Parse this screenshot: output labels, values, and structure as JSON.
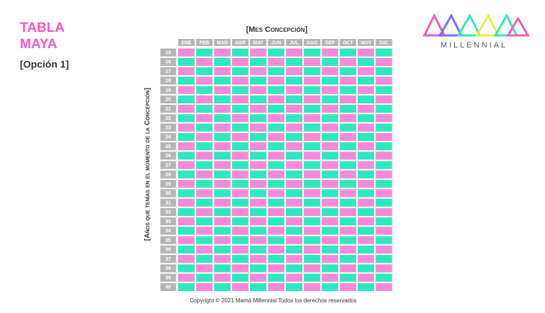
{
  "title_lines": [
    "TABLA",
    "MAYA"
  ],
  "subtitle": "[Opción 1]",
  "logo": {
    "text": "MILLENNIAL"
  },
  "table": {
    "column_header": "[Mes Concepción]",
    "row_header": "[Años que tenías en el momento de la Concepción]",
    "months": [
      "ENE",
      "FEB",
      "MAR",
      "ABR",
      "MAY",
      "JUN",
      "JUL",
      "AGO",
      "SEP",
      "OCT",
      "NOV",
      "DIC"
    ],
    "ages": [
      15,
      16,
      17,
      18,
      19,
      20,
      21,
      22,
      23,
      24,
      25,
      26,
      27,
      28,
      29,
      30,
      31,
      32,
      33,
      34,
      35,
      36,
      37,
      38,
      39,
      40
    ],
    "cells": [
      [
        "#f78ad6",
        "#2ee8c0",
        "#f78ad6",
        "#2ee8c0",
        "#f78ad6",
        "#2ee8c0",
        "#f78ad6",
        "#2ee8c0",
        "#f78ad6",
        "#2ee8c0",
        "#f78ad6",
        "#2ee8c0"
      ],
      [
        "#2ee8c0",
        "#f78ad6",
        "#2ee8c0",
        "#f78ad6",
        "#2ee8c0",
        "#f78ad6",
        "#2ee8c0",
        "#f78ad6",
        "#2ee8c0",
        "#f78ad6",
        "#2ee8c0",
        "#f78ad6"
      ],
      [
        "#f78ad6",
        "#2ee8c0",
        "#f78ad6",
        "#2ee8c0",
        "#f78ad6",
        "#2ee8c0",
        "#f78ad6",
        "#2ee8c0",
        "#f78ad6",
        "#2ee8c0",
        "#f78ad6",
        "#2ee8c0"
      ],
      [
        "#2ee8c0",
        "#f78ad6",
        "#2ee8c0",
        "#f78ad6",
        "#2ee8c0",
        "#f78ad6",
        "#2ee8c0",
        "#f78ad6",
        "#2ee8c0",
        "#f78ad6",
        "#2ee8c0",
        "#f78ad6"
      ],
      [
        "#f78ad6",
        "#2ee8c0",
        "#f78ad6",
        "#2ee8c0",
        "#f78ad6",
        "#2ee8c0",
        "#f78ad6",
        "#2ee8c0",
        "#f78ad6",
        "#2ee8c0",
        "#f78ad6",
        "#2ee8c0"
      ],
      [
        "#2ee8c0",
        "#f78ad6",
        "#2ee8c0",
        "#f78ad6",
        "#2ee8c0",
        "#f78ad6",
        "#2ee8c0",
        "#f78ad6",
        "#2ee8c0",
        "#f78ad6",
        "#2ee8c0",
        "#f78ad6"
      ],
      [
        "#f78ad6",
        "#2ee8c0",
        "#f78ad6",
        "#2ee8c0",
        "#f78ad6",
        "#2ee8c0",
        "#f78ad6",
        "#2ee8c0",
        "#f78ad6",
        "#2ee8c0",
        "#f78ad6",
        "#2ee8c0"
      ],
      [
        "#2ee8c0",
        "#f78ad6",
        "#2ee8c0",
        "#f78ad6",
        "#2ee8c0",
        "#f78ad6",
        "#2ee8c0",
        "#f78ad6",
        "#2ee8c0",
        "#f78ad6",
        "#2ee8c0",
        "#f78ad6"
      ],
      [
        "#f78ad6",
        "#2ee8c0",
        "#f78ad6",
        "#2ee8c0",
        "#f78ad6",
        "#2ee8c0",
        "#f78ad6",
        "#2ee8c0",
        "#f78ad6",
        "#2ee8c0",
        "#f78ad6",
        "#2ee8c0"
      ],
      [
        "#2ee8c0",
        "#f78ad6",
        "#2ee8c0",
        "#f78ad6",
        "#2ee8c0",
        "#f78ad6",
        "#2ee8c0",
        "#f78ad6",
        "#2ee8c0",
        "#f78ad6",
        "#2ee8c0",
        "#f78ad6"
      ],
      [
        "#f78ad6",
        "#2ee8c0",
        "#f78ad6",
        "#2ee8c0",
        "#f78ad6",
        "#2ee8c0",
        "#f78ad6",
        "#2ee8c0",
        "#f78ad6",
        "#2ee8c0",
        "#f78ad6",
        "#2ee8c0"
      ],
      [
        "#2ee8c0",
        "#f78ad6",
        "#2ee8c0",
        "#f78ad6",
        "#2ee8c0",
        "#f78ad6",
        "#2ee8c0",
        "#f78ad6",
        "#2ee8c0",
        "#f78ad6",
        "#2ee8c0",
        "#f78ad6"
      ],
      [
        "#f78ad6",
        "#2ee8c0",
        "#f78ad6",
        "#2ee8c0",
        "#f78ad6",
        "#2ee8c0",
        "#f78ad6",
        "#2ee8c0",
        "#f78ad6",
        "#2ee8c0",
        "#f78ad6",
        "#2ee8c0"
      ],
      [
        "#2ee8c0",
        "#f78ad6",
        "#2ee8c0",
        "#f78ad6",
        "#2ee8c0",
        "#f78ad6",
        "#2ee8c0",
        "#f78ad6",
        "#2ee8c0",
        "#f78ad6",
        "#2ee8c0",
        "#f78ad6"
      ],
      [
        "#f78ad6",
        "#2ee8c0",
        "#f78ad6",
        "#2ee8c0",
        "#f78ad6",
        "#2ee8c0",
        "#f78ad6",
        "#2ee8c0",
        "#f78ad6",
        "#2ee8c0",
        "#f78ad6",
        "#2ee8c0"
      ],
      [
        "#2ee8c0",
        "#f78ad6",
        "#2ee8c0",
        "#f78ad6",
        "#2ee8c0",
        "#f78ad6",
        "#2ee8c0",
        "#f78ad6",
        "#2ee8c0",
        "#f78ad6",
        "#2ee8c0",
        "#f78ad6"
      ],
      [
        "#f78ad6",
        "#2ee8c0",
        "#f78ad6",
        "#2ee8c0",
        "#f78ad6",
        "#2ee8c0",
        "#f78ad6",
        "#2ee8c0",
        "#f78ad6",
        "#2ee8c0",
        "#f78ad6",
        "#2ee8c0"
      ],
      [
        "#2ee8c0",
        "#f78ad6",
        "#2ee8c0",
        "#f78ad6",
        "#2ee8c0",
        "#f78ad6",
        "#2ee8c0",
        "#f78ad6",
        "#2ee8c0",
        "#f78ad6",
        "#2ee8c0",
        "#f78ad6"
      ],
      [
        "#f78ad6",
        "#2ee8c0",
        "#f78ad6",
        "#2ee8c0",
        "#f78ad6",
        "#2ee8c0",
        "#f78ad6",
        "#2ee8c0",
        "#f78ad6",
        "#2ee8c0",
        "#f78ad6",
        "#2ee8c0"
      ],
      [
        "#2ee8c0",
        "#f78ad6",
        "#2ee8c0",
        "#f78ad6",
        "#2ee8c0",
        "#f78ad6",
        "#2ee8c0",
        "#f78ad6",
        "#2ee8c0",
        "#f78ad6",
        "#2ee8c0",
        "#f78ad6"
      ],
      [
        "#f78ad6",
        "#2ee8c0",
        "#f78ad6",
        "#2ee8c0",
        "#f78ad6",
        "#2ee8c0",
        "#f78ad6",
        "#2ee8c0",
        "#f78ad6",
        "#2ee8c0",
        "#f78ad6",
        "#2ee8c0"
      ],
      [
        "#2ee8c0",
        "#f78ad6",
        "#2ee8c0",
        "#f78ad6",
        "#2ee8c0",
        "#f78ad6",
        "#2ee8c0",
        "#f78ad6",
        "#2ee8c0",
        "#f78ad6",
        "#2ee8c0",
        "#f78ad6"
      ],
      [
        "#f78ad6",
        "#2ee8c0",
        "#f78ad6",
        "#2ee8c0",
        "#f78ad6",
        "#2ee8c0",
        "#f78ad6",
        "#2ee8c0",
        "#f78ad6",
        "#2ee8c0",
        "#f78ad6",
        "#2ee8c0"
      ],
      [
        "#2ee8c0",
        "#f78ad6",
        "#2ee8c0",
        "#f78ad6",
        "#2ee8c0",
        "#f78ad6",
        "#2ee8c0",
        "#f78ad6",
        "#2ee8c0",
        "#f78ad6",
        "#2ee8c0",
        "#f78ad6"
      ],
      [
        "#f78ad6",
        "#2ee8c0",
        "#f78ad6",
        "#2ee8c0",
        "#f78ad6",
        "#2ee8c0",
        "#f78ad6",
        "#2ee8c0",
        "#f78ad6",
        "#2ee8c0",
        "#f78ad6",
        "#2ee8c0"
      ],
      [
        "#2ee8c0",
        "#f78ad6",
        "#2ee8c0",
        "#f78ad6",
        "#2ee8c0",
        "#f78ad6",
        "#2ee8c0",
        "#f78ad6",
        "#2ee8c0",
        "#f78ad6",
        "#2ee8c0",
        "#f78ad6"
      ]
    ]
  },
  "footer": "Copyright © 2021 Mamá Millennial Todos los derechos reservados"
}
